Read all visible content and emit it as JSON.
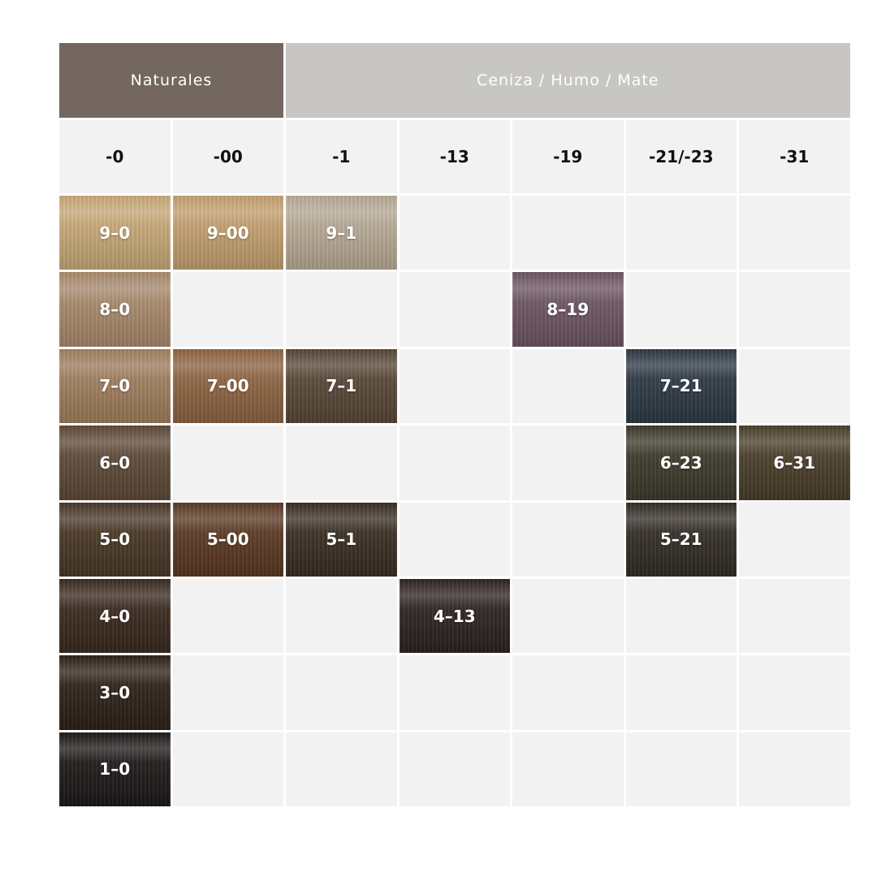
{
  "header": {
    "groups": [
      {
        "label": "Naturales",
        "color": "#746760"
      },
      {
        "label": "Ceniza / Humo / Mate",
        "color": "#c8c6c3"
      }
    ]
  },
  "table": {
    "columns": [
      "-0",
      "-00",
      "-1",
      "-13",
      "-19",
      "-21/-23",
      "-31"
    ],
    "rows": [
      [
        {
          "label": "9–0",
          "color": "#c6a676"
        },
        {
          "label": "9–00",
          "color": "#c29e6e"
        },
        {
          "label": "9–1",
          "color": "#b5a894"
        },
        null,
        null,
        null,
        null
      ],
      [
        {
          "label": "8–0",
          "color": "#a6886a"
        },
        null,
        null,
        null,
        {
          "label": "8–19",
          "color": "#6c5460"
        },
        null,
        null
      ],
      [
        {
          "label": "7–0",
          "color": "#9e7c5c"
        },
        {
          "label": "7–00",
          "color": "#8c6240"
        },
        {
          "label": "7–1",
          "color": "#564636"
        },
        null,
        null,
        {
          "label": "7–21",
          "color": "#2c3842"
        },
        null
      ],
      [
        {
          "label": "6–0",
          "color": "#5c4836"
        },
        null,
        null,
        null,
        null,
        {
          "label": "6–23",
          "color": "#3c382a"
        },
        {
          "label": "6–31",
          "color": "#483c28"
        }
      ],
      [
        {
          "label": "5–0",
          "color": "#483626"
        },
        {
          "label": "5–00",
          "color": "#583822"
        },
        {
          "label": "5–1",
          "color": "#382c22"
        },
        null,
        null,
        {
          "label": "5–21",
          "color": "#322b25"
        },
        null
      ],
      [
        {
          "label": "4–0",
          "color": "#38281c"
        },
        null,
        null,
        {
          "label": "4–13",
          "color": "#2c2220"
        },
        null,
        null,
        null
      ],
      [
        {
          "label": "3–0",
          "color": "#2c2016"
        },
        null,
        null,
        null,
        null,
        null,
        null
      ],
      [
        {
          "label": "1–0",
          "color": "#1c1818"
        },
        null,
        null,
        null,
        null,
        null,
        null
      ]
    ]
  }
}
